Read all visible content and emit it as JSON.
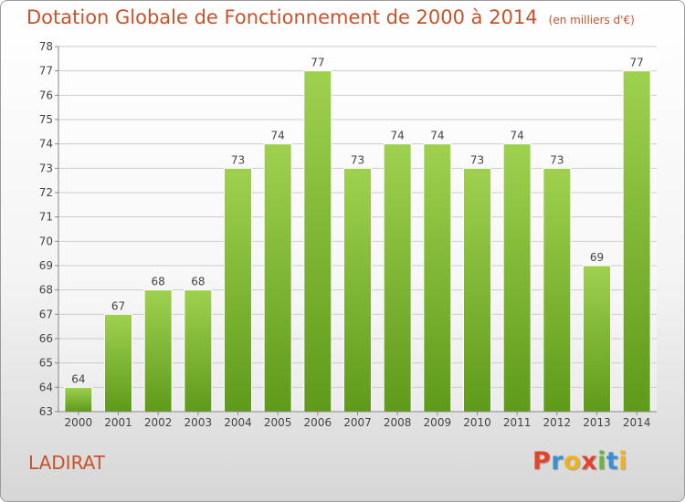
{
  "title": "Dotation Globale de Fonctionnement de 2000 à 2014",
  "unit": "(en milliers d'€)",
  "commune": "LADIRAT",
  "logo": {
    "text": "Proxiti",
    "letters": [
      {
        "ch": "P",
        "color": "#e4432b"
      },
      {
        "ch": "r",
        "color": "#3a8fd2"
      },
      {
        "ch": "o",
        "color": "#f2b01e"
      },
      {
        "ch": "x",
        "color": "#e4432b"
      },
      {
        "ch": "i",
        "color": "#6cb33f"
      },
      {
        "ch": "t",
        "color": "#3a8fd2"
      },
      {
        "ch": "i",
        "color": "#f2b01e"
      }
    ]
  },
  "colors": {
    "title": "#c9522b",
    "bar_top": "#9fd14f",
    "bar_bottom": "#5f9a1a",
    "grid": "#cccccc",
    "axis_text": "#444444"
  },
  "chart_data": {
    "type": "bar",
    "title": "Dotation Globale de Fonctionnement de 2000 à 2014",
    "ylabel": "",
    "xlabel": "",
    "categories": [
      "2000",
      "2001",
      "2002",
      "2003",
      "2004",
      "2005",
      "2006",
      "2007",
      "2008",
      "2009",
      "2010",
      "2011",
      "2012",
      "2013",
      "2014"
    ],
    "values": [
      64,
      67,
      68,
      68,
      73,
      74,
      77,
      73,
      74,
      74,
      73,
      74,
      73,
      69,
      77
    ],
    "ylim": [
      63,
      78
    ],
    "yticks": [
      63,
      64,
      65,
      66,
      67,
      68,
      69,
      70,
      71,
      72,
      73,
      74,
      75,
      76,
      77,
      78
    ],
    "grid": true,
    "data_labels": true
  }
}
